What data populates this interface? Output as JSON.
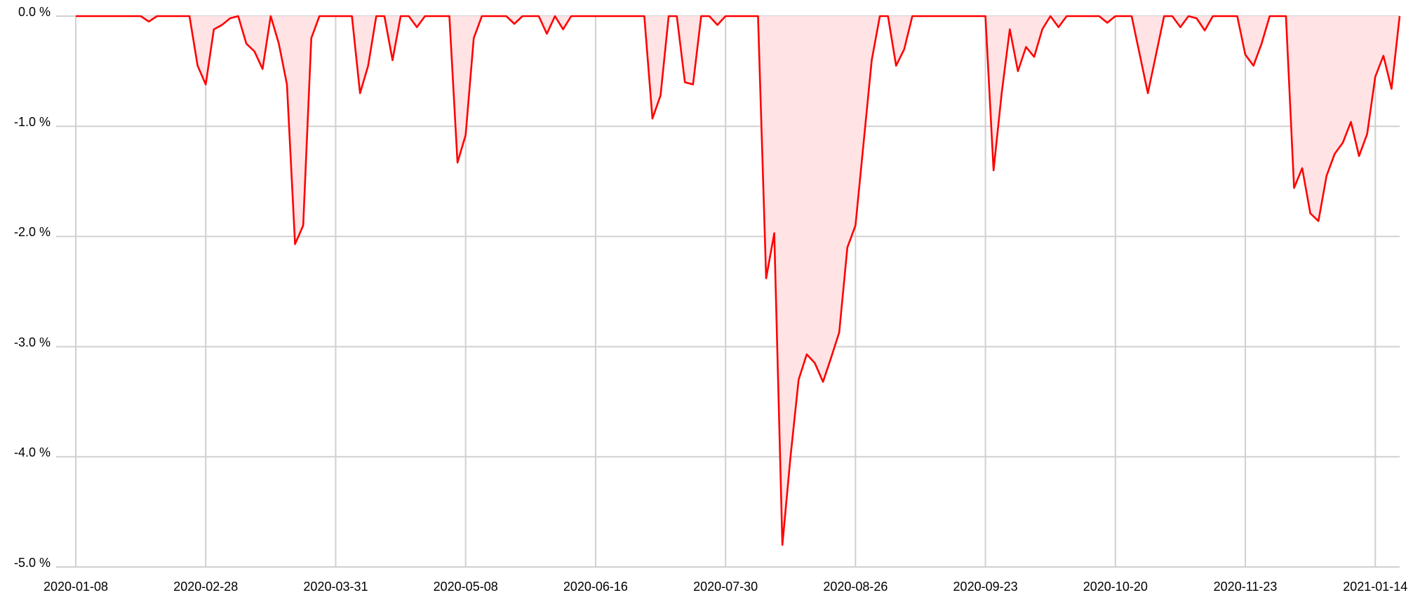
{
  "chart_data": {
    "type": "area",
    "categories": [
      "2020-01-08",
      null,
      null,
      null,
      null,
      null,
      null,
      null,
      null,
      null,
      null,
      null,
      null,
      null,
      null,
      null,
      "2020-02-28",
      null,
      null,
      null,
      null,
      null,
      null,
      null,
      null,
      null,
      null,
      null,
      null,
      null,
      null,
      null,
      "2020-03-31",
      null,
      null,
      null,
      null,
      null,
      null,
      null,
      null,
      null,
      null,
      null,
      null,
      null,
      null,
      null,
      "2020-05-08",
      null,
      null,
      null,
      null,
      null,
      null,
      null,
      null,
      null,
      null,
      null,
      null,
      null,
      null,
      null,
      "2020-06-16",
      null,
      null,
      null,
      null,
      null,
      null,
      null,
      null,
      null,
      null,
      null,
      null,
      null,
      null,
      null,
      "2020-07-30",
      null,
      null,
      null,
      null,
      null,
      null,
      null,
      null,
      null,
      null,
      null,
      null,
      null,
      null,
      null,
      "2020-08-26",
      null,
      null,
      null,
      null,
      null,
      null,
      null,
      null,
      null,
      null,
      null,
      null,
      null,
      null,
      null,
      "2020-09-23",
      null,
      null,
      null,
      null,
      null,
      null,
      null,
      null,
      null,
      null,
      null,
      null,
      null,
      null,
      null,
      "2020-10-20",
      null,
      null,
      null,
      null,
      null,
      null,
      null,
      null,
      null,
      null,
      null,
      null,
      null,
      null,
      null,
      "2020-11-23",
      null,
      null,
      null,
      null,
      null,
      null,
      null,
      null,
      null,
      null,
      null,
      null,
      null,
      null,
      null,
      "2021-01-14",
      null,
      null,
      null
    ],
    "values": [
      0,
      0,
      0,
      0,
      0,
      0,
      0,
      0,
      0,
      -0.05,
      0,
      0,
      0,
      0,
      0,
      -0.45,
      -0.62,
      -0.12,
      -0.08,
      -0.02,
      0,
      -0.25,
      -0.32,
      -0.48,
      0,
      -0.25,
      -0.62,
      -2.07,
      -1.9,
      -0.2,
      0,
      0,
      0,
      0,
      0,
      -0.7,
      -0.45,
      0,
      0,
      -0.4,
      0,
      0,
      -0.1,
      0,
      0,
      0,
      0,
      -1.33,
      -1.08,
      -0.2,
      0,
      0,
      0,
      0,
      -0.07,
      0,
      0,
      0,
      -0.16,
      0,
      -0.12,
      0,
      0,
      0,
      0,
      0,
      0,
      0,
      0,
      0,
      0,
      -0.93,
      -0.72,
      0,
      0,
      -0.6,
      -0.62,
      0,
      0,
      -0.08,
      0,
      0,
      0,
      0,
      0,
      -2.38,
      -1.97,
      -4.8,
      -4.0,
      -3.3,
      -3.07,
      -3.15,
      -3.32,
      -3.1,
      -2.87,
      -2.1,
      -1.9,
      -1.15,
      -0.4,
      0,
      0,
      -0.45,
      -0.3,
      0,
      0,
      0,
      0,
      0,
      0,
      0,
      0,
      0,
      0,
      -1.4,
      -0.7,
      -0.12,
      -0.5,
      -0.28,
      -0.37,
      -0.12,
      0,
      -0.1,
      0,
      0,
      0,
      0,
      0,
      -0.06,
      0,
      0,
      0,
      -0.35,
      -0.7,
      -0.35,
      0,
      0,
      -0.1,
      0,
      -0.02,
      -0.13,
      0,
      0,
      0,
      0,
      -0.35,
      -0.45,
      -0.25,
      0,
      0,
      0,
      -1.56,
      -1.38,
      -1.79,
      -1.86,
      -1.45,
      -1.25,
      -1.15,
      -0.96,
      -1.27,
      -1.07,
      -0.55,
      -0.36,
      -0.66,
      0
    ],
    "color": "#ff0000",
    "fill_color": "#ffe3e5",
    "ylim": [
      -5,
      0
    ],
    "yticks": [
      {
        "value": 0,
        "label": "0.0 %"
      },
      {
        "value": -1,
        "label": "-1.0 %"
      },
      {
        "value": -2,
        "label": "-2.0 %"
      },
      {
        "value": -3,
        "label": "-3.0 %"
      },
      {
        "value": -4,
        "label": "-4.0 %"
      },
      {
        "value": -5,
        "label": "-5.0 %"
      }
    ],
    "grid": true
  }
}
